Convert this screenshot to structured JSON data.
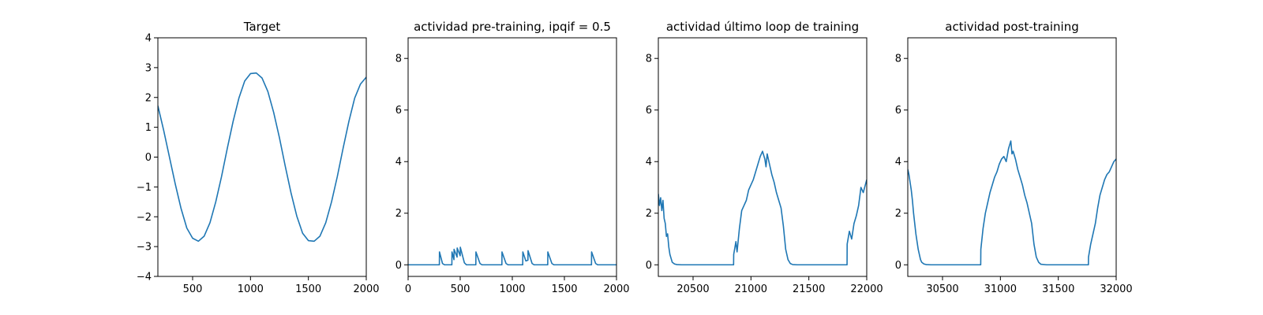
{
  "chart_data": [
    {
      "type": "line",
      "title": "Target",
      "xlim": [
        200,
        2000
      ],
      "ylim": [
        -4,
        4
      ],
      "xticks": [
        500,
        1000,
        1500,
        2000
      ],
      "yticks": [
        -4,
        -3,
        -2,
        -1,
        0,
        1,
        2,
        3,
        4
      ],
      "xtick_labels": [
        "500",
        "1000",
        "1500",
        "2000"
      ],
      "ytick_labels": [
        "−4",
        "−3",
        "−2",
        "−1",
        "0",
        "1",
        "2",
        "3",
        "4"
      ],
      "series": [
        {
          "color": "#1f77b4",
          "x": [
            200,
            250,
            300,
            350,
            400,
            450,
            500,
            550,
            600,
            650,
            700,
            750,
            800,
            850,
            900,
            950,
            1000,
            1050,
            1100,
            1150,
            1200,
            1250,
            1300,
            1350,
            1400,
            1450,
            1500,
            1550,
            1600,
            1650,
            1700,
            1750,
            1800,
            1850,
            1900,
            1950,
            2000
          ],
          "y": [
            1.72,
            0.9,
            0.0,
            -0.9,
            -1.72,
            -2.38,
            -2.72,
            -2.82,
            -2.65,
            -2.2,
            -1.5,
            -0.65,
            0.3,
            1.2,
            1.98,
            2.55,
            2.8,
            2.82,
            2.65,
            2.2,
            1.5,
            0.65,
            -0.3,
            -1.2,
            -1.98,
            -2.55,
            -2.8,
            -2.82,
            -2.65,
            -2.2,
            -1.5,
            -0.65,
            0.3,
            1.2,
            1.98,
            2.45,
            2.68
          ]
        }
      ]
    },
    {
      "type": "line",
      "title": "actividad pre-training, ipqif = 0.5",
      "xlim": [
        0,
        2000
      ],
      "ylim": [
        -0.45,
        8.8
      ],
      "xticks": [
        0,
        500,
        1000,
        1500,
        2000
      ],
      "yticks": [
        0,
        2,
        4,
        6,
        8
      ],
      "xtick_labels": [
        "0",
        "500",
        "1000",
        "1500",
        "2000"
      ],
      "ytick_labels": [
        "0",
        "2",
        "4",
        "6",
        "8"
      ],
      "series": [
        {
          "color": "#1f77b4",
          "x": [
            0,
            300,
            301,
            330,
            350,
            360,
            420,
            421,
            440,
            441,
            470,
            471,
            500,
            501,
            540,
            560,
            650,
            651,
            690,
            710,
            900,
            901,
            940,
            960,
            1100,
            1101,
            1130,
            1150,
            1151,
            1190,
            1210,
            1340,
            1341,
            1380,
            1400,
            1760,
            1761,
            1800,
            1820,
            2000
          ],
          "y": [
            0,
            0,
            0.5,
            0.05,
            0,
            0,
            0,
            0.5,
            0.2,
            0.6,
            0.3,
            0.65,
            0.35,
            0.68,
            0.08,
            0,
            0,
            0.5,
            0.05,
            0,
            0,
            0.5,
            0.05,
            0,
            0,
            0.5,
            0.15,
            0.18,
            0.55,
            0.05,
            0,
            0,
            0.5,
            0.05,
            0,
            0,
            0.5,
            0.05,
            0,
            0
          ]
        }
      ]
    },
    {
      "type": "line",
      "title": "actividad último loop de training",
      "xlim": [
        20200,
        22000
      ],
      "ylim": [
        -0.45,
        8.8
      ],
      "xticks": [
        20500,
        21000,
        21500,
        22000
      ],
      "yticks": [
        0,
        2,
        4,
        6,
        8
      ],
      "xtick_labels": [
        "20500",
        "21000",
        "21500",
        "22000"
      ],
      "ytick_labels": [
        "0",
        "2",
        "4",
        "6",
        "8"
      ],
      "series": [
        {
          "color": "#1f77b4",
          "x": [
            20200,
            20210,
            20220,
            20230,
            20240,
            20250,
            20260,
            20270,
            20280,
            20290,
            20300,
            20310,
            20320,
            20340,
            20360,
            20400,
            20500,
            20600,
            20700,
            20800,
            20850,
            20851,
            20870,
            20880,
            20900,
            20920,
            20940,
            20960,
            20980,
            21000,
            21020,
            21040,
            21060,
            21080,
            21100,
            21120,
            21130,
            21140,
            21160,
            21180,
            21200,
            21220,
            21240,
            21260,
            21280,
            21300,
            21320,
            21340,
            21360,
            21400,
            21500,
            21600,
            21700,
            21800,
            21830,
            21831,
            21850,
            21870,
            21890,
            21910,
            21930,
            21950,
            21970,
            22000
          ],
          "y": [
            2.75,
            2.3,
            2.6,
            2.1,
            2.5,
            1.8,
            1.6,
            1.1,
            1.2,
            0.7,
            0.4,
            0.25,
            0.1,
            0.03,
            0.01,
            0,
            0,
            0,
            0,
            0,
            0,
            0.4,
            0.9,
            0.5,
            1.4,
            2.1,
            2.3,
            2.5,
            2.9,
            3.1,
            3.3,
            3.6,
            3.9,
            4.2,
            4.4,
            4.1,
            3.8,
            4.3,
            3.9,
            3.5,
            3.2,
            2.8,
            2.5,
            2.2,
            1.5,
            0.6,
            0.2,
            0.05,
            0.01,
            0,
            0,
            0,
            0,
            0,
            0,
            0.8,
            1.3,
            1.0,
            1.6,
            1.9,
            2.3,
            3.0,
            2.8,
            3.3
          ]
        }
      ]
    },
    {
      "type": "line",
      "title": "actividad post-training",
      "xlim": [
        30200,
        32000
      ],
      "ylim": [
        -0.45,
        8.8
      ],
      "xticks": [
        30500,
        31000,
        31500,
        32000
      ],
      "yticks": [
        0,
        2,
        4,
        6,
        8
      ],
      "xtick_labels": [
        "30500",
        "31000",
        "31500",
        "32000"
      ],
      "ytick_labels": [
        "0",
        "2",
        "4",
        "6",
        "8"
      ],
      "series": [
        {
          "color": "#1f77b4",
          "x": [
            30200,
            30210,
            30220,
            30230,
            30240,
            30250,
            30260,
            30270,
            30280,
            30290,
            30300,
            30310,
            30320,
            30340,
            30360,
            30400,
            30500,
            30600,
            30700,
            30800,
            30830,
            30831,
            30850,
            30870,
            30890,
            30910,
            30930,
            30950,
            30970,
            30990,
            31010,
            31030,
            31050,
            31070,
            31090,
            31100,
            31110,
            31130,
            31150,
            31170,
            31190,
            31210,
            31230,
            31250,
            31270,
            31290,
            31310,
            31330,
            31350,
            31400,
            31500,
            31600,
            31700,
            31760,
            31761,
            31780,
            31800,
            31820,
            31840,
            31860,
            31880,
            31900,
            31920,
            31940,
            31960,
            31980,
            32000
          ],
          "y": [
            3.7,
            3.5,
            3.2,
            2.9,
            2.5,
            2.0,
            1.6,
            1.2,
            0.9,
            0.6,
            0.4,
            0.2,
            0.1,
            0.03,
            0.01,
            0,
            0,
            0,
            0,
            0,
            0,
            0.6,
            1.4,
            2.0,
            2.4,
            2.8,
            3.1,
            3.4,
            3.6,
            3.9,
            4.1,
            4.2,
            4.0,
            4.5,
            4.8,
            4.3,
            4.4,
            4.1,
            3.7,
            3.4,
            3.1,
            2.7,
            2.4,
            2.0,
            1.6,
            0.8,
            0.3,
            0.1,
            0.02,
            0,
            0,
            0,
            0,
            0,
            0.3,
            0.8,
            1.2,
            1.6,
            2.2,
            2.7,
            3.0,
            3.3,
            3.5,
            3.6,
            3.8,
            4.0,
            4.1
          ]
        }
      ]
    }
  ]
}
